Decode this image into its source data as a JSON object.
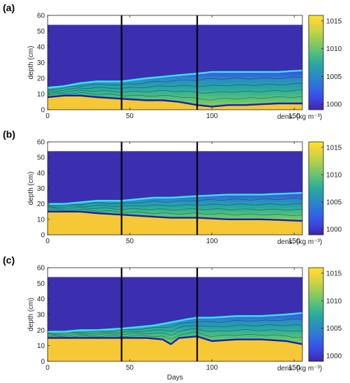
{
  "colors": {
    "water": "#3b2fb0",
    "brine": "#f6c835",
    "upper_interface": "#39e3f2",
    "lower_interface": "#1d1fa8",
    "marker": "#000000",
    "cbar": [
      "#fde725",
      "#f4d33a",
      "#c9d540",
      "#8fcb5c",
      "#4fbf7f",
      "#26a8a1",
      "#2a8bc6",
      "#2f6be0",
      "#3d47e4",
      "#3e26a8"
    ]
  },
  "chart_data": [
    {
      "panel_label": "(a)",
      "type": "heatmap",
      "xlabel": "",
      "ylabel": "depth (cm)",
      "xlim": [
        0,
        155
      ],
      "ylim": [
        0,
        60
      ],
      "xticks": [
        0,
        50,
        100,
        150
      ],
      "yticks": [
        0,
        10,
        20,
        30,
        40,
        50,
        60
      ],
      "domain_top": 54,
      "vertical_markers": [
        45,
        91
      ],
      "colorbar": {
        "label": "dens. (kg m⁻³)",
        "range": [
          999,
          1016
        ],
        "ticks": [
          1000,
          1005,
          1010,
          1015
        ]
      },
      "upper_interface": {
        "x": [
          0,
          10,
          20,
          30,
          45,
          60,
          70,
          80,
          91,
          100,
          120,
          140,
          155
        ],
        "y": [
          14,
          15,
          17,
          18,
          18,
          20,
          21,
          22,
          23,
          24,
          24,
          24,
          25
        ]
      },
      "lower_interface": {
        "x": [
          0,
          10,
          20,
          30,
          45,
          60,
          70,
          80,
          91,
          100,
          110,
          120,
          140,
          155
        ],
        "y": [
          8,
          9,
          9,
          8,
          7,
          6,
          6,
          5,
          3,
          2,
          3,
          3,
          4,
          4
        ]
      }
    },
    {
      "panel_label": "(b)",
      "type": "heatmap",
      "xlabel": "",
      "ylabel": "depth (cm)",
      "xlim": [
        0,
        155
      ],
      "ylim": [
        0,
        60
      ],
      "xticks": [
        0,
        50,
        100,
        150
      ],
      "yticks": [
        0,
        10,
        20,
        30,
        40,
        50,
        60
      ],
      "domain_top": 54,
      "vertical_markers": [
        45,
        91
      ],
      "colorbar": {
        "label": "dens. (kg m⁻³)",
        "range": [
          999,
          1016
        ],
        "ticks": [
          1000,
          1005,
          1010,
          1015
        ]
      },
      "upper_interface": {
        "x": [
          0,
          10,
          20,
          30,
          45,
          55,
          65,
          75,
          91,
          110,
          130,
          155
        ],
        "y": [
          20,
          20,
          21,
          22,
          22,
          23,
          24,
          24,
          25,
          26,
          26,
          27
        ]
      },
      "lower_interface": {
        "x": [
          0,
          10,
          20,
          30,
          45,
          60,
          75,
          91,
          110,
          130,
          155
        ],
        "y": [
          15,
          15,
          15,
          14,
          13,
          12,
          11,
          11,
          10,
          10,
          9
        ]
      }
    },
    {
      "panel_label": "(c)",
      "type": "heatmap",
      "xlabel": "Days",
      "ylabel": "depth (cm)",
      "xlim": [
        0,
        155
      ],
      "ylim": [
        0,
        60
      ],
      "xticks": [
        0,
        50,
        100,
        150
      ],
      "yticks": [
        0,
        10,
        20,
        30,
        40,
        50,
        60
      ],
      "domain_top": 54,
      "vertical_markers": [
        45,
        91
      ],
      "colorbar": {
        "label": "dens. (kg m⁻³)",
        "range": [
          999,
          1016
        ],
        "ticks": [
          1000,
          1005,
          1010,
          1015
        ]
      },
      "upper_interface": {
        "x": [
          0,
          10,
          20,
          30,
          45,
          55,
          65,
          75,
          85,
          91,
          100,
          115,
          130,
          145,
          155
        ],
        "y": [
          19,
          19,
          20,
          20,
          21,
          22,
          23,
          25,
          27,
          28,
          28,
          29,
          29,
          30,
          31
        ]
      },
      "lower_interface": {
        "x": [
          0,
          10,
          20,
          30,
          45,
          60,
          70,
          75,
          80,
          91,
          100,
          115,
          130,
          145,
          155
        ],
        "y": [
          15,
          15,
          15,
          15,
          15,
          15,
          14,
          11,
          15,
          16,
          13,
          14,
          14,
          13,
          11
        ]
      }
    }
  ]
}
